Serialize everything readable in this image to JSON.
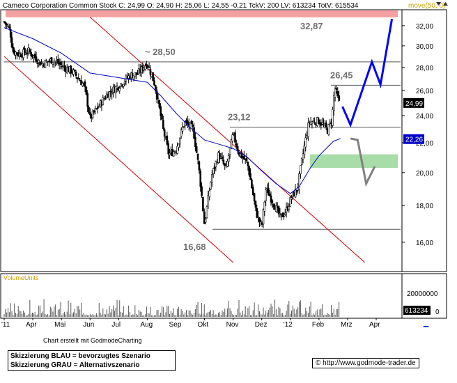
{
  "header": {
    "text": "Cameco Corporation Common Stock C: 24,99 O: 24,90 H: 25,06 L: 24,55 -0,21 TckV: 200 LV: 613234 TotV: 615534",
    "move": "move(50, 0)"
  },
  "volume_label": "VolumeUnits",
  "credit": "Chart erstellt mit GodmodeCharting",
  "legend": [
    "Skizzierung BLAU = bevorzugtes Szenario",
    "Skizzierung GRAU = Alternativszenario"
  ],
  "url": "http://www.godmode-trader.de",
  "colors": {
    "up": "#00aa00",
    "down": "#cc0000",
    "ma": "#0000cc",
    "channel": "#cc0000",
    "blue": "#0000ff",
    "gray": "#808080",
    "zone_red": "#f4a0a0",
    "zone_green": "#a8dca8"
  },
  "chart_data": {
    "type": "candlestick",
    "title": "Cameco Corporation Common Stock",
    "ylim": [
      14.6,
      33.6
    ],
    "y_scale": "log",
    "y_ticks": [
      "32,00",
      "30,00",
      "28,00",
      "26,00",
      "24,00",
      "22,00",
      "20,00",
      "18,00",
      "16,00"
    ],
    "x_ticks": [
      "'11",
      "Apr",
      "Mai",
      "Jun",
      "Jul",
      "Aug",
      "Sep",
      "Okt",
      "Nov",
      "Dez",
      "'12",
      "Feb",
      "Mrz",
      "Apr"
    ],
    "price_badges": [
      {
        "label": "24,99",
        "value": 24.99,
        "color": "#000000"
      },
      {
        "label": "22,26",
        "value": 22.26,
        "color": "#0000cc"
      }
    ],
    "close_path": [
      {
        "x": 0.0,
        "y": 32.4
      },
      {
        "x": 0.2,
        "y": 31.6
      },
      {
        "x": 0.3,
        "y": 29.5
      },
      {
        "x": 0.55,
        "y": 29.2
      },
      {
        "x": 0.85,
        "y": 29.5
      },
      {
        "x": 1.3,
        "y": 28.3
      },
      {
        "x": 1.7,
        "y": 28.7
      },
      {
        "x": 2.1,
        "y": 28.0
      },
      {
        "x": 2.4,
        "y": 27.6
      },
      {
        "x": 2.8,
        "y": 26.4
      },
      {
        "x": 3.0,
        "y": 23.8
      },
      {
        "x": 3.2,
        "y": 24.4
      },
      {
        "x": 3.6,
        "y": 25.7
      },
      {
        "x": 4.0,
        "y": 26.4
      },
      {
        "x": 4.4,
        "y": 27.3
      },
      {
        "x": 4.65,
        "y": 27.4
      },
      {
        "x": 5.0,
        "y": 28.4
      },
      {
        "x": 5.25,
        "y": 26.6
      },
      {
        "x": 5.55,
        "y": 23.0
      },
      {
        "x": 5.75,
        "y": 21.2
      },
      {
        "x": 6.0,
        "y": 21.5
      },
      {
        "x": 6.3,
        "y": 23.5
      },
      {
        "x": 6.6,
        "y": 23.0
      },
      {
        "x": 6.8,
        "y": 20.3
      },
      {
        "x": 7.0,
        "y": 16.9
      },
      {
        "x": 7.25,
        "y": 19.8
      },
      {
        "x": 7.5,
        "y": 21.2
      },
      {
        "x": 7.75,
        "y": 20.2
      },
      {
        "x": 8.0,
        "y": 22.6
      },
      {
        "x": 8.2,
        "y": 21.3
      },
      {
        "x": 8.5,
        "y": 20.6
      },
      {
        "x": 8.8,
        "y": 17.6
      },
      {
        "x": 9.0,
        "y": 16.8
      },
      {
        "x": 9.15,
        "y": 19.0
      },
      {
        "x": 9.45,
        "y": 18.0
      },
      {
        "x": 9.65,
        "y": 17.3
      },
      {
        "x": 9.85,
        "y": 17.7
      },
      {
        "x": 10.05,
        "y": 18.5
      },
      {
        "x": 10.25,
        "y": 19.0
      },
      {
        "x": 10.45,
        "y": 21.3
      },
      {
        "x": 10.65,
        "y": 23.5
      },
      {
        "x": 11.0,
        "y": 23.6
      },
      {
        "x": 11.3,
        "y": 22.9
      },
      {
        "x": 11.45,
        "y": 23.7
      },
      {
        "x": 11.55,
        "y": 26.3
      },
      {
        "x": 11.7,
        "y": 24.99
      }
    ],
    "moving_average": {
      "name": "move(50, 0)",
      "points": [
        {
          "x": 0.0,
          "y": 31.8
        },
        {
          "x": 1.0,
          "y": 30.7
        },
        {
          "x": 2.0,
          "y": 29.3
        },
        {
          "x": 3.0,
          "y": 27.5
        },
        {
          "x": 4.0,
          "y": 27.1
        },
        {
          "x": 5.0,
          "y": 26.7
        },
        {
          "x": 5.5,
          "y": 25.5
        },
        {
          "x": 6.0,
          "y": 24.2
        },
        {
          "x": 6.5,
          "y": 23.1
        },
        {
          "x": 7.0,
          "y": 22.2
        },
        {
          "x": 7.5,
          "y": 21.9
        },
        {
          "x": 8.0,
          "y": 21.6
        },
        {
          "x": 8.5,
          "y": 21.0
        },
        {
          "x": 9.0,
          "y": 20.1
        },
        {
          "x": 9.5,
          "y": 19.3
        },
        {
          "x": 10.0,
          "y": 18.7
        },
        {
          "x": 10.3,
          "y": 19.1
        },
        {
          "x": 10.7,
          "y": 20.3
        },
        {
          "x": 11.0,
          "y": 21.1
        },
        {
          "x": 11.5,
          "y": 22.1
        },
        {
          "x": 11.75,
          "y": 22.3
        }
      ]
    },
    "channel_lines": [
      {
        "from": {
          "x": 0.0,
          "y": 29.0
        },
        "to": {
          "x": 8.0,
          "y": 15.0
        }
      },
      {
        "from": {
          "x": 3.0,
          "y": 32.9
        },
        "to": {
          "x": 12.6,
          "y": 15.0
        }
      }
    ],
    "horizontal_levels": [
      {
        "value": 28.5,
        "label": "~ 28,50"
      },
      {
        "value": 23.12,
        "label": "23,12"
      },
      {
        "value": 26.45,
        "label": "26,45"
      },
      {
        "value": 16.68,
        "label": "16,68"
      }
    ],
    "resistance_zone": {
      "from": 32.87,
      "to": 33.6,
      "label": "32,87"
    },
    "support_zone": {
      "from": 20.3,
      "to": 21.2
    },
    "scenario_blue": [
      {
        "x": 11.82,
        "y": 24.7
      },
      {
        "x": 12.1,
        "y": 23.3
      },
      {
        "x": 12.85,
        "y": 28.5
      },
      {
        "x": 13.15,
        "y": 26.5
      },
      {
        "x": 13.55,
        "y": 32.7
      }
    ],
    "scenario_gray": [
      {
        "x": 12.1,
        "y": 22.3
      },
      {
        "x": 12.35,
        "y": 22.2
      },
      {
        "x": 12.65,
        "y": 19.3
      },
      {
        "x": 12.95,
        "y": 20.4
      }
    ],
    "volume": {
      "label": "VolumeUnits",
      "y_ticks": [
        "20000000",
        "0"
      ],
      "last_value": "613234"
    }
  }
}
